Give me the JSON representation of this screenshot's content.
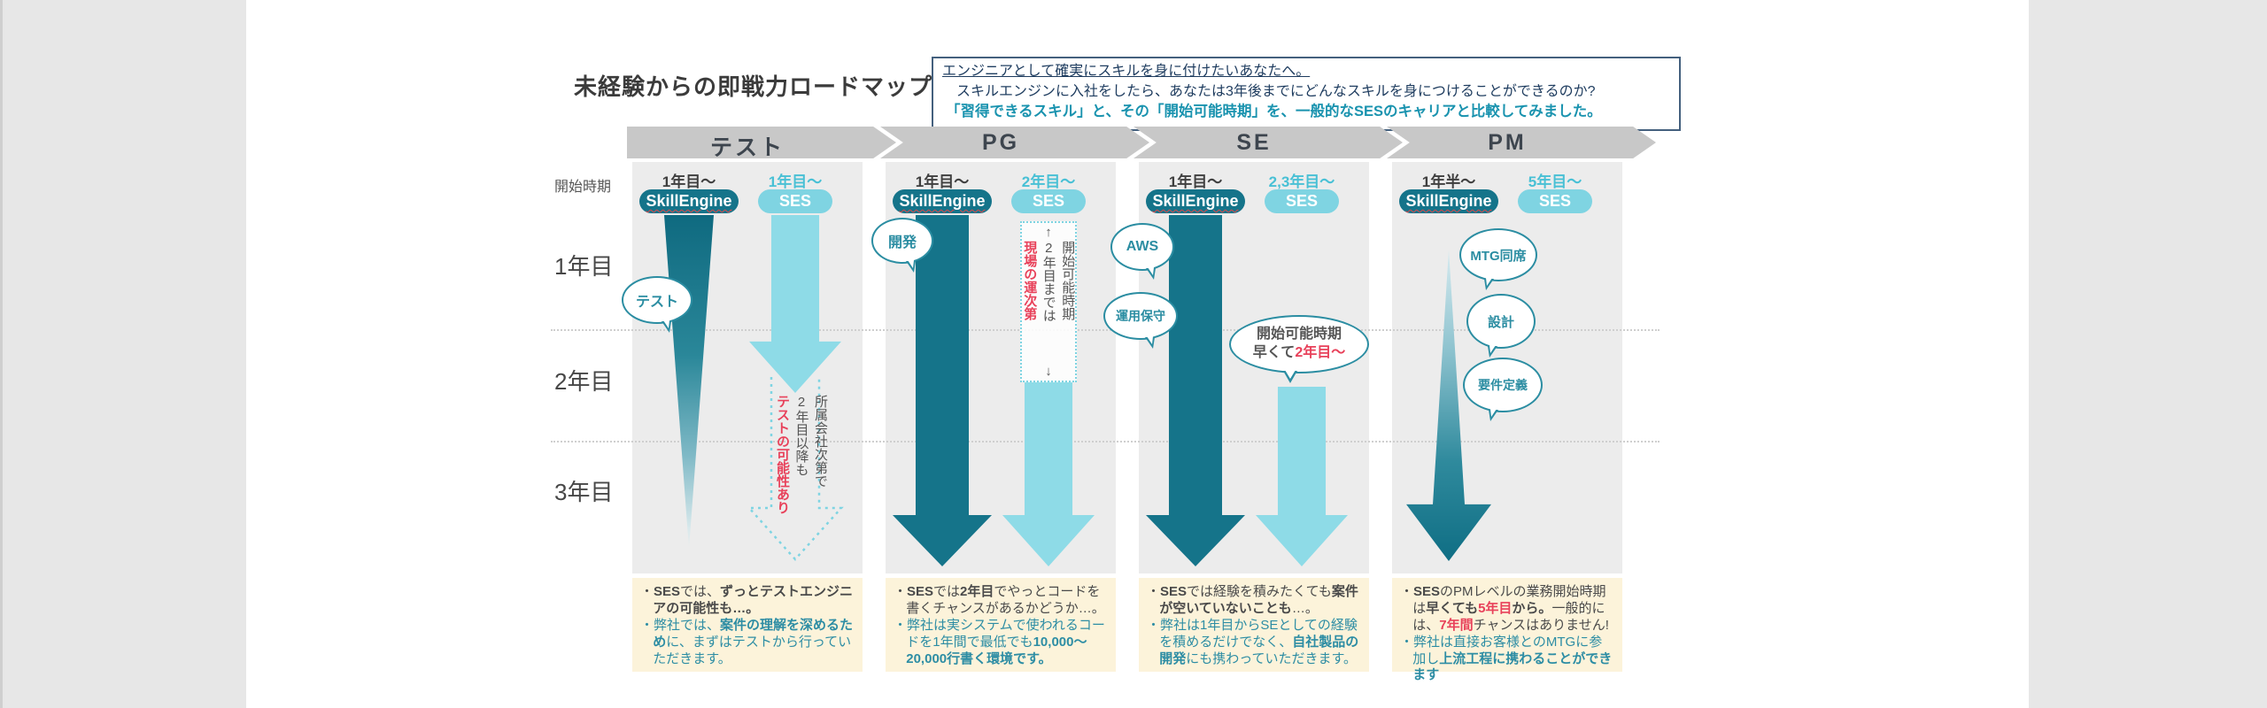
{
  "page": {
    "title": "未経験からの即戦力ロードマップ"
  },
  "intro_box": {
    "line1": "エンジニアとして確実にスキルを身に付けたいあなたへ。",
    "line2": "スキルエンジンに入社をしたら、あなたは3年後までにどんなスキルを身につけることができるのか?",
    "line3": "「習得できるスキル」と、その「開始可能時期」を、一般的なSESのキャリアと比較してみました。"
  },
  "axis": {
    "start_label": "開始時期",
    "rows": [
      "1年目",
      "2年目",
      "3年目"
    ]
  },
  "legend": {
    "skillengine": "SkillEngine",
    "ses": "SES"
  },
  "columns": [
    {
      "stage": "テスト",
      "skillengine_start": "1年目〜",
      "ses_start": "1年目〜",
      "bubbles": [
        "テスト"
      ],
      "ses_vertical_note": [
        {
          "t": "所属会社次第で"
        },
        {
          "t": "2年目以降も"
        },
        {
          "t": "テストの可能性あり",
          "c": "red",
          "b": true
        }
      ],
      "note": {
        "bullets": [
          {
            "color": "note_gray",
            "segments": [
              {
                "t": "・"
              },
              {
                "t": "SES",
                "b": true
              },
              {
                "t": "では、"
              },
              {
                "t": "ずっとテストエンジニアの可能性も…。",
                "b": true
              }
            ]
          },
          {
            "color": "note_teal",
            "segments": [
              {
                "t": "・"
              },
              {
                "t": "弊社では、"
              },
              {
                "t": "案件の理解を深めるため",
                "b": true
              },
              {
                "t": "に、まずはテストから行っていただきます。"
              }
            ]
          }
        ]
      }
    },
    {
      "stage": "PG",
      "skillengine_start": "1年目〜",
      "ses_start": "2年目〜",
      "bubbles": [
        "開発"
      ],
      "ses_box_note": {
        "up": "↑",
        "segments": [
          {
            "t": "開始可能時期"
          },
          {
            "t": "2年目までは"
          },
          {
            "t": "現場の運次第",
            "c": "red",
            "b": true
          }
        ],
        "down": "↓"
      },
      "note": {
        "bullets": [
          {
            "color": "note_gray",
            "segments": [
              {
                "t": "・"
              },
              {
                "t": "SES",
                "b": true
              },
              {
                "t": "では"
              },
              {
                "t": "2年目",
                "b": true
              },
              {
                "t": "でやっとコードを書くチャンスがあるかどうか…。"
              }
            ]
          },
          {
            "color": "note_teal",
            "segments": [
              {
                "t": "・"
              },
              {
                "t": "弊社は実システムで使われるコードを1年間で最低でも"
              },
              {
                "t": "10,000〜20,000行書く環境です。",
                "b": true
              }
            ]
          }
        ]
      }
    },
    {
      "stage": "SE",
      "skillengine_start": "1年目〜",
      "ses_start": "2,3年目〜",
      "bubbles": [
        "AWS",
        "運用保守"
      ],
      "ses_bubble": {
        "line1": "開始可能時期",
        "line2": [
          {
            "t": "早くて"
          },
          {
            "t": "2年目〜",
            "c": "red",
            "b": true
          }
        ]
      },
      "note": {
        "bullets": [
          {
            "color": "note_gray",
            "segments": [
              {
                "t": "・"
              },
              {
                "t": "SES",
                "b": true
              },
              {
                "t": "では経験を積みたくても"
              },
              {
                "t": "案件が空いていないことも",
                "b": true
              },
              {
                "t": "…。"
              }
            ]
          },
          {
            "color": "note_teal",
            "segments": [
              {
                "t": "・"
              },
              {
                "t": "弊社は1年目からSEとしての経験を積めるだけでなく、"
              },
              {
                "t": "自社製品の開発",
                "b": true
              },
              {
                "t": "にも携わっていただきます。"
              }
            ]
          }
        ]
      }
    },
    {
      "stage": "PM",
      "skillengine_start": "1年半〜",
      "ses_start": "5年目〜",
      "bubbles": [
        "MTG同席",
        "設計",
        "要件定義"
      ],
      "note": {
        "bullets": [
          {
            "color": "note_gray",
            "segments": [
              {
                "t": "・"
              },
              {
                "t": "SES",
                "b": true
              },
              {
                "t": "のPMレベルの業務開始時期は"
              },
              {
                "t": "早くても",
                "b": true
              },
              {
                "t": "5年目",
                "b": true,
                "c": "red"
              },
              {
                "t": "から。",
                "b": true
              },
              {
                "t": "一般的には、"
              },
              {
                "t": "7年間",
                "b": true,
                "c": "red"
              },
              {
                "t": "チャンスはありません!"
              }
            ]
          },
          {
            "color": "note_teal",
            "segments": [
              {
                "t": "・"
              },
              {
                "t": "弊社は直接お客様とのMTGに参加し"
              },
              {
                "t": "上流工程に携わることができます",
                "b": true
              }
            ]
          }
        ]
      }
    }
  ],
  "colors": {
    "side": "#e7e7e7",
    "panel": "#ececec",
    "chevron": "#c8c8c8",
    "chevron_text": "#3d454e",
    "teal_dark": "#15748a",
    "teal_light": "#8edbe7",
    "pill_light": "#7fd4e2",
    "teal_line": "#2b8da2",
    "label_teal": "#48c0d5",
    "red": "#e8415a",
    "navy": "#1e3c5f",
    "teal_info": "#1a93af",
    "note_gray": "#4a4a4a",
    "note_teal": "#2d8da4",
    "cream": "#fcf3da",
    "text_dark": "#3f3f3f"
  }
}
